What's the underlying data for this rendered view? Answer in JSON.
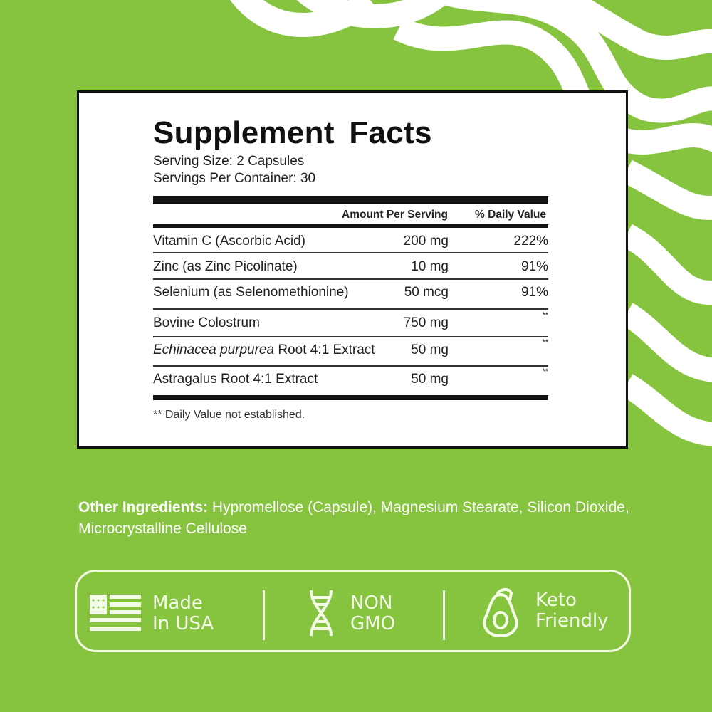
{
  "colors": {
    "background": "#86c440",
    "stripes": "#ffffff",
    "label_border": "#111111"
  },
  "label": {
    "title": "Supplement Facts",
    "serving_size": "Serving Size: 2 Capsules",
    "servings_per_container": "Servings Per Container: 30",
    "header_amount": "Amount Per Serving",
    "header_dv": "% Daily Value",
    "rows": [
      {
        "name": "Vitamin C (Ascorbic Acid)",
        "amount": "200 mg",
        "dv": "222%"
      },
      {
        "name": "Zinc (as Zinc Picolinate)",
        "amount": "10 mg",
        "dv": "91%"
      },
      {
        "name": "Selenium (as Selenomethionine)",
        "amount": "50 mcg",
        "dv": "91%"
      },
      {
        "name": "Bovine Colostrum",
        "amount": "750 mg",
        "dv": "**"
      },
      {
        "name_italic": "Echinacea purpurea",
        "name": " Root 4:1 Extract",
        "amount": "50 mg",
        "dv": "**"
      },
      {
        "name": "Astragalus Root 4:1 Extract",
        "amount": "50 mg",
        "dv": "**"
      }
    ],
    "footnote": "** Daily Value not established."
  },
  "other_ingredients": {
    "label": "Other Ingredients:",
    "text": " Hypromellose (Capsule), Magnesium Stearate, Silicon Dioxide, Microcrystalline Cellulose"
  },
  "badges": [
    {
      "icon": "us-flag-icon",
      "line1": "Made",
      "line2": "In USA"
    },
    {
      "icon": "dna-icon",
      "line1": "NON",
      "line2": "GMO"
    },
    {
      "icon": "avocado-icon",
      "line1": "Keto",
      "line2": "Friendly"
    }
  ]
}
